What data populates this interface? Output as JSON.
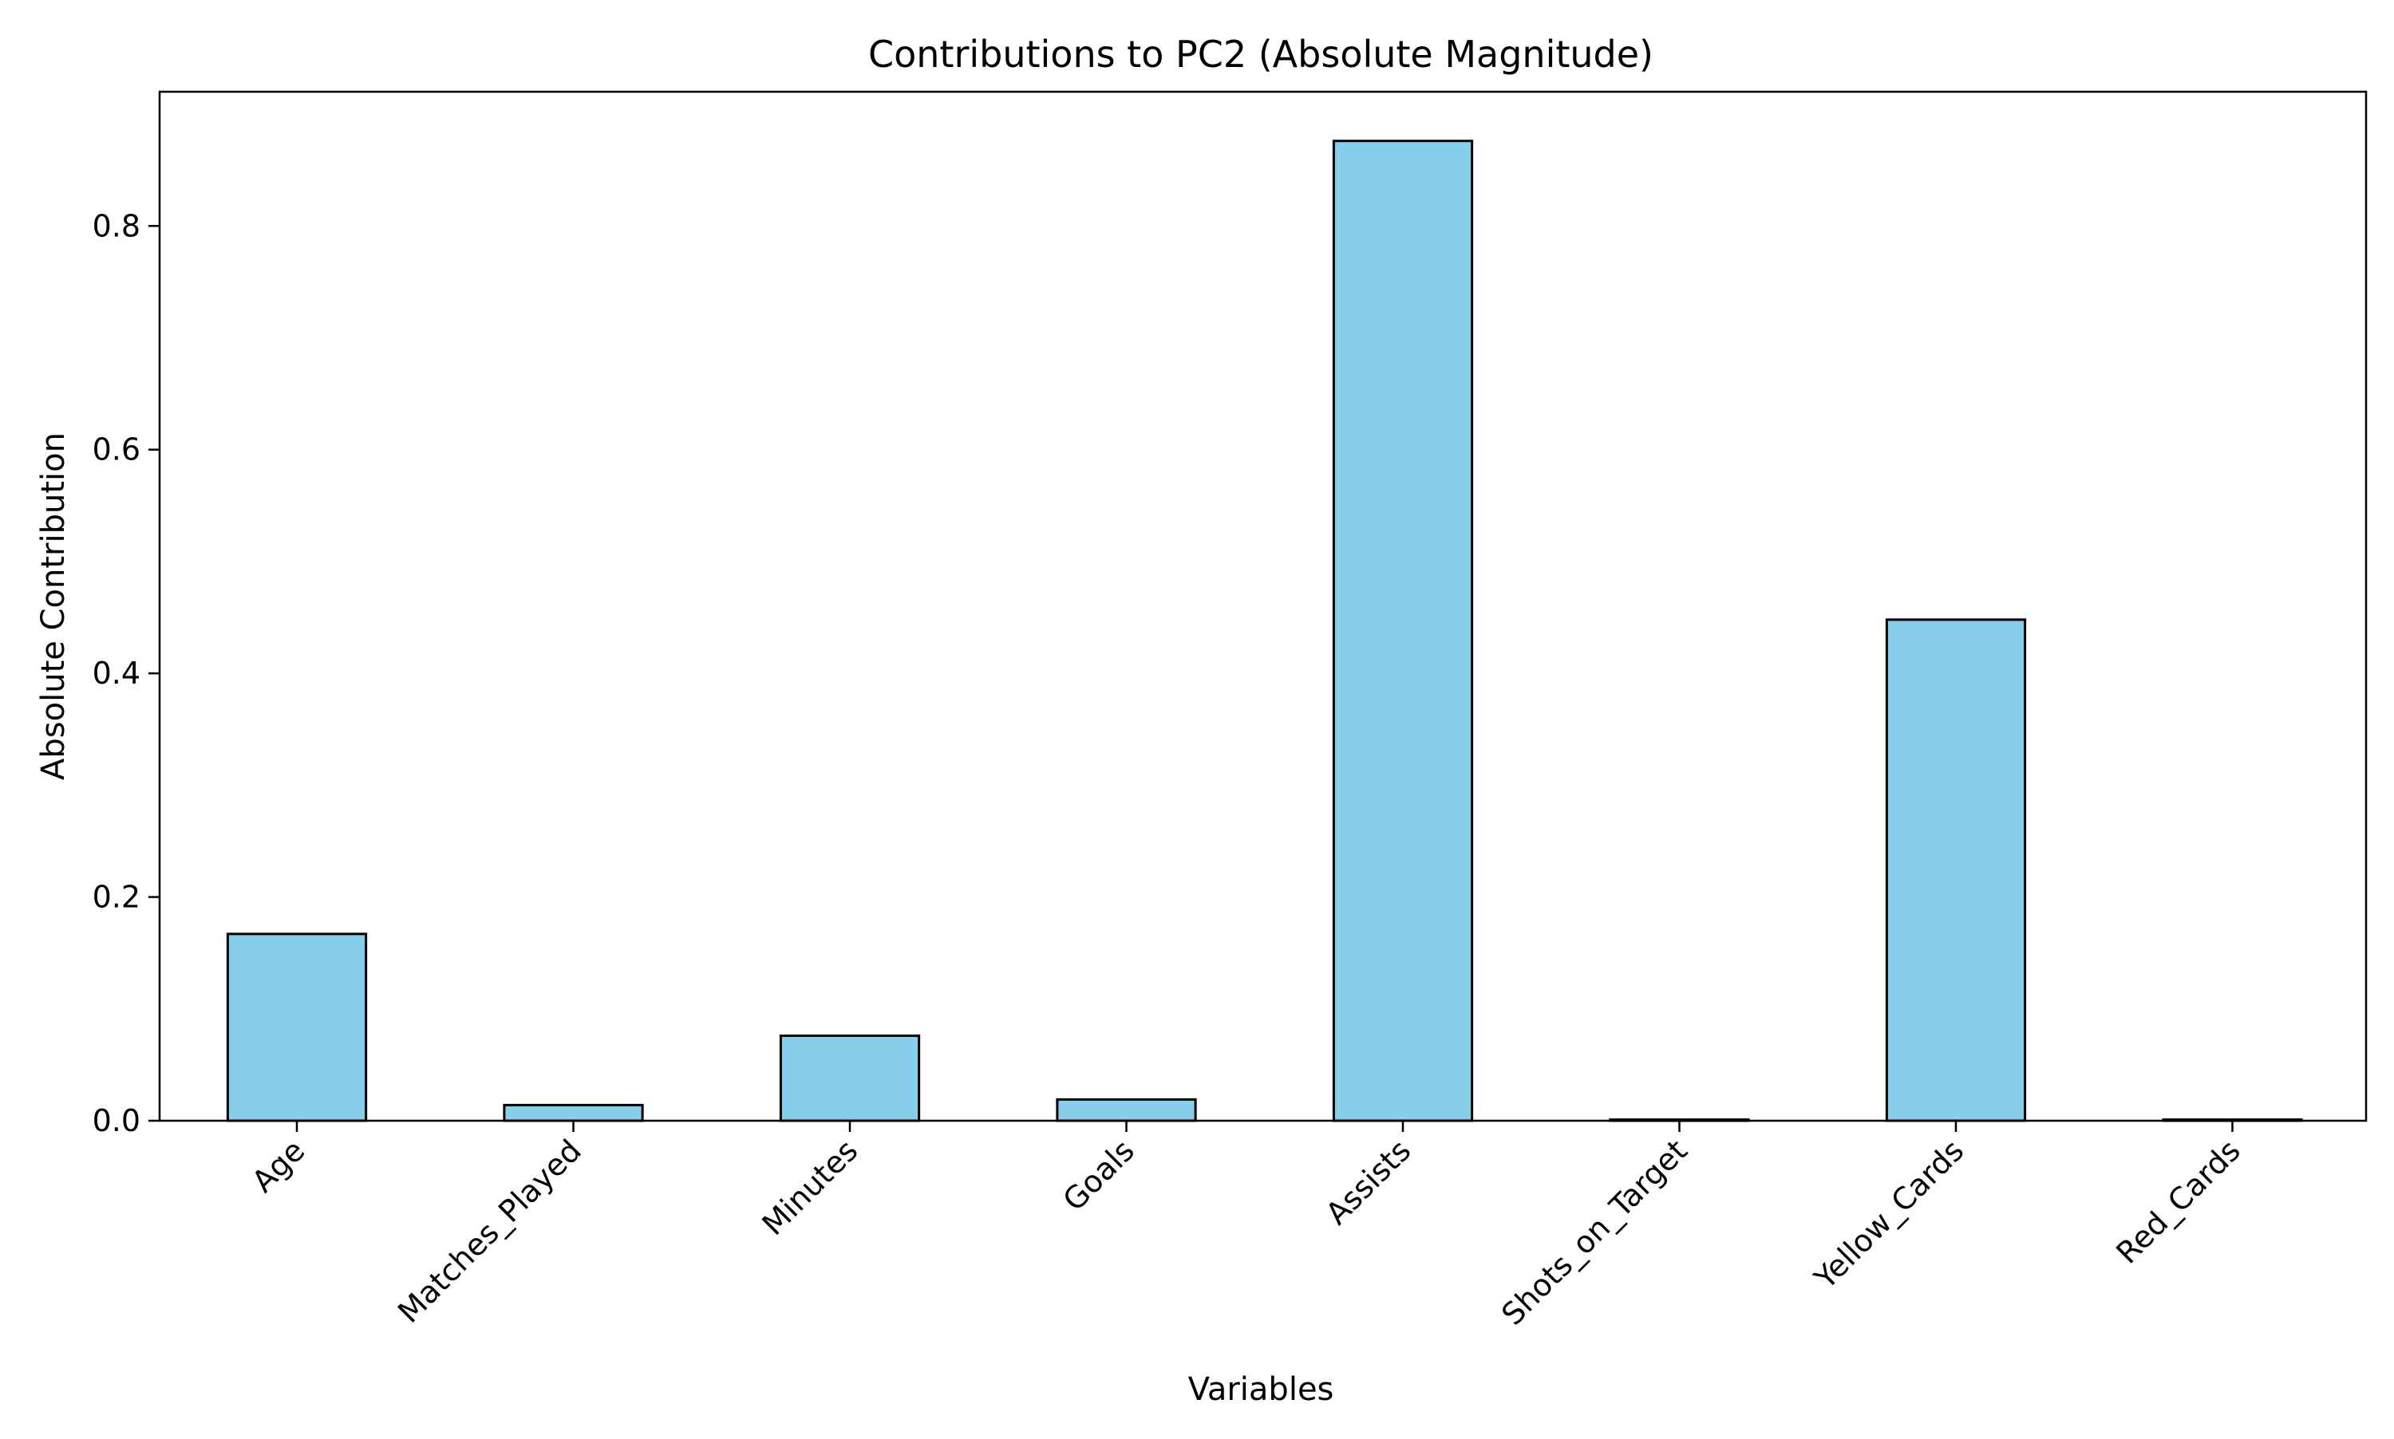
{
  "chart_data": {
    "type": "bar",
    "title": "Contributions to PC2 (Absolute Magnitude)",
    "xlabel": "Variables",
    "ylabel": "Absolute Contribution",
    "categories": [
      "Age",
      "Matches_Played",
      "Minutes",
      "Goals",
      "Assists",
      "Shots_on_Target",
      "Yellow_Cards",
      "Red_Cards"
    ],
    "values": [
      0.167,
      0.014,
      0.076,
      0.019,
      0.876,
      0.001,
      0.448,
      0.001
    ],
    "ylim": [
      0,
      0.92
    ],
    "yticks": [
      0.0,
      0.2,
      0.4,
      0.6,
      0.8
    ],
    "ytick_labels": [
      "0.0",
      "0.2",
      "0.4",
      "0.6",
      "0.8"
    ],
    "grid": false,
    "bar_color": "#87CEEB",
    "edge_color": "#000000"
  }
}
